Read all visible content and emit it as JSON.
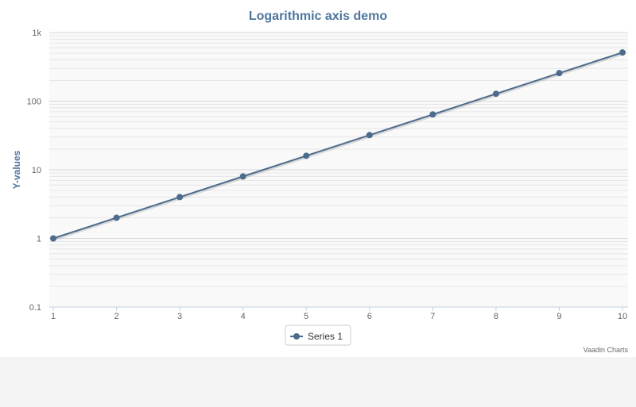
{
  "chart_data": {
    "type": "line",
    "title": "Logarithmic axis demo",
    "xlabel": "",
    "ylabel": "Y-values",
    "x": [
      1,
      2,
      3,
      4,
      5,
      6,
      7,
      8,
      9,
      10
    ],
    "x_tick_labels": [
      "1",
      "2",
      "3",
      "4",
      "5",
      "6",
      "7",
      "8",
      "9",
      "10"
    ],
    "xlim": [
      1,
      10
    ],
    "y_scale": "log",
    "ylim": [
      0.1,
      1000
    ],
    "y_tick_values": [
      0.1,
      1,
      10,
      100,
      1000
    ],
    "y_tick_labels": [
      "0.1",
      "1",
      "10",
      "100",
      "1k"
    ],
    "grid": true,
    "legend_position": "bottom-center",
    "series": [
      {
        "name": "Series 1",
        "values": [
          1,
          2,
          4,
          8,
          16,
          32,
          64,
          128,
          256,
          512
        ],
        "color": "#4d6b8c"
      }
    ],
    "credits": "Vaadin Charts"
  },
  "colors": {
    "title": "#4d759e",
    "axis_title": "#4d759e",
    "plot_background": "#f9f9f9",
    "page_background": "#f4f4f4"
  }
}
